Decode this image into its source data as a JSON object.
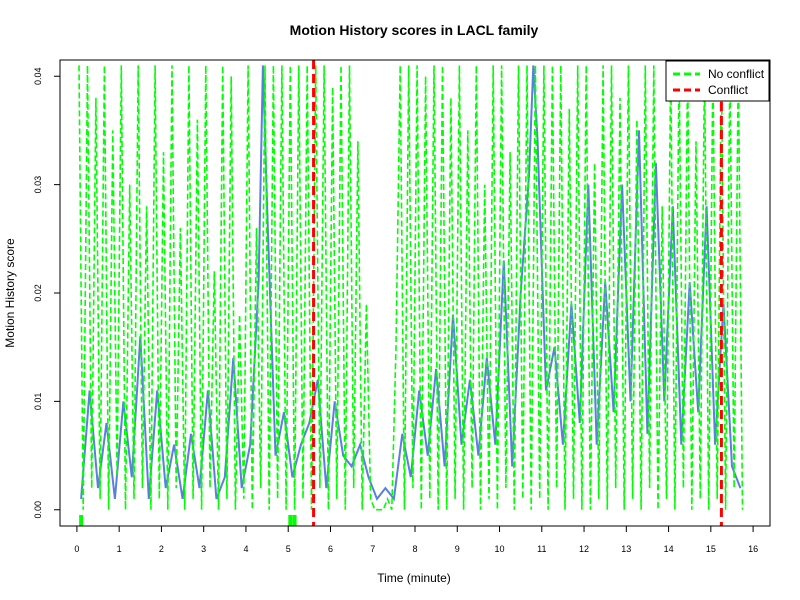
{
  "chart_data": {
    "type": "line",
    "title": "Motion History scores in LACL family",
    "xlabel": "Time (minute)",
    "ylabel": "Motion History score",
    "xlim": [
      -0.4,
      16.4
    ],
    "ylim": [
      -0.0015,
      0.0415
    ],
    "x_ticks": [
      "0",
      "1",
      "2",
      "3",
      "4",
      "5",
      "6",
      "7",
      "8",
      "9",
      "10",
      "11",
      "12",
      "13",
      "14",
      "15",
      "16"
    ],
    "y_ticks": [
      "0.00",
      "0.01",
      "0.02",
      "0.03",
      "0.04"
    ],
    "legend_position": "top-right",
    "series": [
      {
        "name": "No conflict",
        "color": "#00ff00",
        "style": "dashed",
        "x": [
          0.05,
          0.15,
          0.25,
          0.35,
          0.45,
          0.55,
          0.65,
          0.75,
          0.85,
          0.95,
          1.05,
          1.15,
          1.25,
          1.35,
          1.45,
          1.55,
          1.65,
          1.75,
          1.85,
          1.95,
          2.05,
          2.15,
          2.25,
          2.35,
          2.45,
          2.55,
          2.65,
          2.75,
          2.85,
          2.95,
          3.05,
          3.15,
          3.25,
          3.35,
          3.45,
          3.55,
          3.65,
          3.75,
          3.85,
          3.95,
          4.05,
          4.15,
          4.25,
          4.35,
          4.45,
          4.55,
          4.65,
          4.75,
          4.85,
          4.95,
          5.05,
          5.15,
          5.25,
          5.35,
          5.45,
          5.55,
          5.65,
          5.75,
          5.85,
          5.95,
          6.05,
          6.15,
          6.25,
          6.35,
          6.45,
          6.55,
          6.65,
          6.75,
          6.85,
          6.95,
          7.05,
          7.15,
          7.25,
          7.35,
          7.45,
          7.55,
          7.65,
          7.75,
          7.85,
          7.95,
          8.05,
          8.15,
          8.25,
          8.35,
          8.45,
          8.55,
          8.65,
          8.75,
          8.85,
          8.95,
          9.05,
          9.15,
          9.25,
          9.35,
          9.45,
          9.55,
          9.65,
          9.75,
          9.85,
          9.95,
          10.05,
          10.15,
          10.25,
          10.35,
          10.45,
          10.55,
          10.65,
          10.75,
          10.85,
          10.95,
          11.05,
          11.15,
          11.25,
          11.35,
          11.45,
          11.55,
          11.65,
          11.75,
          11.85,
          11.95,
          12.05,
          12.15,
          12.25,
          12.35,
          12.45,
          12.55,
          12.65,
          12.75,
          12.85,
          12.95,
          13.05,
          13.15,
          13.25,
          13.35,
          13.45,
          13.55,
          13.65,
          13.75,
          13.85,
          13.95,
          14.05,
          14.15,
          14.25,
          14.35,
          14.45,
          14.55,
          14.65,
          14.75,
          14.85,
          14.95,
          15.05,
          15.15,
          15.25,
          15.35,
          15.45,
          15.55,
          15.65,
          15.75
        ],
        "values": [
          0.041,
          0.0,
          0.041,
          0.002,
          0.038,
          0.001,
          0.041,
          0.0,
          0.035,
          0.003,
          0.041,
          0.0,
          0.03,
          0.001,
          0.041,
          0.002,
          0.028,
          0.0,
          0.041,
          0.001,
          0.033,
          0.0,
          0.041,
          0.002,
          0.026,
          0.0,
          0.041,
          0.001,
          0.036,
          0.0,
          0.041,
          0.002,
          0.022,
          0.0,
          0.041,
          0.001,
          0.04,
          0.0,
          0.018,
          0.001,
          0.041,
          0.0,
          0.026,
          0.002,
          0.041,
          0.0,
          0.041,
          0.001,
          0.041,
          0.0,
          0.041,
          0.0,
          0.041,
          0.001,
          0.041,
          0.0,
          0.041,
          0.002,
          0.041,
          0.0,
          0.039,
          0.001,
          0.041,
          0.0,
          0.041,
          0.002,
          0.034,
          0.0,
          0.019,
          0.001,
          0.0,
          0.0,
          0.0,
          0.001,
          0.0,
          0.015,
          0.041,
          0.0,
          0.041,
          0.002,
          0.041,
          0.0,
          0.04,
          0.001,
          0.041,
          0.0,
          0.041,
          0.0,
          0.038,
          0.001,
          0.041,
          0.0,
          0.035,
          0.002,
          0.041,
          0.0,
          0.03,
          0.001,
          0.041,
          0.0,
          0.041,
          0.002,
          0.033,
          0.0,
          0.041,
          0.001,
          0.041,
          0.0,
          0.041,
          0.001,
          0.041,
          0.0,
          0.041,
          0.002,
          0.041,
          0.0,
          0.037,
          0.001,
          0.041,
          0.0,
          0.041,
          0.0,
          0.032,
          0.001,
          0.041,
          0.0,
          0.041,
          0.002,
          0.038,
          0.0,
          0.041,
          0.001,
          0.036,
          0.0,
          0.041,
          0.002,
          0.041,
          0.0,
          0.028,
          0.001,
          0.041,
          0.0,
          0.041,
          0.002,
          0.041,
          0.0,
          0.034,
          0.001,
          0.041,
          0.0,
          0.041,
          0.001,
          0.041,
          0.0,
          0.041,
          0.002,
          0.041,
          0.0
        ]
      },
      {
        "name": "",
        "color": "#5b7fe0",
        "style": "solid",
        "x": [
          0.1,
          0.3,
          0.5,
          0.7,
          0.9,
          1.1,
          1.3,
          1.5,
          1.7,
          1.9,
          2.1,
          2.3,
          2.5,
          2.7,
          2.9,
          3.1,
          3.3,
          3.5,
          3.7,
          3.9,
          4.1,
          4.3,
          4.4,
          4.5,
          4.7,
          4.9,
          5.1,
          5.3,
          5.5,
          5.7,
          5.9,
          6.1,
          6.3,
          6.5,
          6.7,
          6.9,
          7.1,
          7.3,
          7.5,
          7.7,
          7.9,
          8.1,
          8.3,
          8.5,
          8.7,
          8.9,
          9.1,
          9.3,
          9.5,
          9.7,
          9.9,
          10.1,
          10.3,
          10.5,
          10.7,
          10.8,
          10.9,
          11.1,
          11.3,
          11.5,
          11.7,
          11.9,
          12.1,
          12.3,
          12.5,
          12.7,
          12.9,
          13.1,
          13.3,
          13.5,
          13.7,
          13.9,
          14.1,
          14.3,
          14.5,
          14.7,
          14.9,
          15.1,
          15.3,
          15.5,
          15.7
        ],
        "values": [
          0.001,
          0.011,
          0.002,
          0.008,
          0.001,
          0.01,
          0.003,
          0.016,
          0.001,
          0.011,
          0.002,
          0.006,
          0.001,
          0.007,
          0.002,
          0.011,
          0.001,
          0.003,
          0.014,
          0.002,
          0.006,
          0.021,
          0.041,
          0.028,
          0.005,
          0.009,
          0.003,
          0.006,
          0.008,
          0.012,
          0.002,
          0.01,
          0.005,
          0.004,
          0.006,
          0.003,
          0.001,
          0.002,
          0.001,
          0.007,
          0.003,
          0.011,
          0.005,
          0.013,
          0.004,
          0.018,
          0.006,
          0.012,
          0.005,
          0.014,
          0.006,
          0.023,
          0.004,
          0.02,
          0.031,
          0.041,
          0.034,
          0.011,
          0.015,
          0.006,
          0.019,
          0.008,
          0.03,
          0.006,
          0.021,
          0.009,
          0.03,
          0.01,
          0.035,
          0.007,
          0.032,
          0.01,
          0.028,
          0.006,
          0.021,
          0.009,
          0.028,
          0.006,
          0.019,
          0.004,
          0.002
        ]
      },
      {
        "name": "Conflict",
        "color": "#ff0000",
        "style": "dashed",
        "x_lines": [
          5.6,
          15.25
        ]
      }
    ],
    "bottom_markers": [
      0.1,
      5.05,
      5.15
    ]
  }
}
